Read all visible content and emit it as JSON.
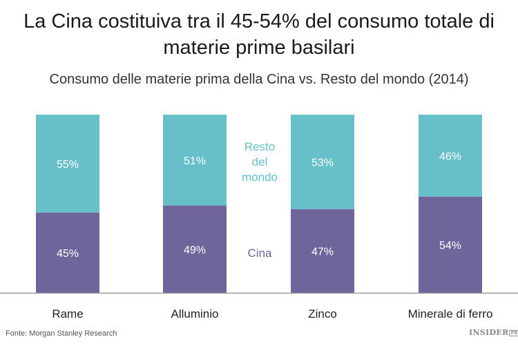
{
  "chart_data": {
    "type": "bar",
    "stacked": true,
    "title": "La Cina costituiva tra il 45-54% del consumo totale di materie prime basilari",
    "subtitle": "Consumo delle materie prima della Cina vs. Resto del mondo (2014)",
    "categories": [
      "Rame",
      "Alluminio",
      "Zinco",
      "Minerale di ferro"
    ],
    "series": [
      {
        "name": "Cina",
        "values": [
          45,
          49,
          47,
          54
        ],
        "color": "#70659b"
      },
      {
        "name": "Resto del mondo",
        "values": [
          55,
          51,
          53,
          46
        ],
        "color": "#67bfc9"
      }
    ],
    "legend_labels": {
      "cina": "Cina",
      "resto": [
        "Resto",
        "del",
        "mondo"
      ]
    },
    "ylim": [
      0,
      100
    ],
    "grid": false,
    "legend_placement": "inline between bars",
    "value_suffix": "%"
  },
  "footer": {
    "source": "Fonte: Morgan Stanley Research",
    "logo": "INSIDER",
    "logo_badge": "PRO"
  }
}
